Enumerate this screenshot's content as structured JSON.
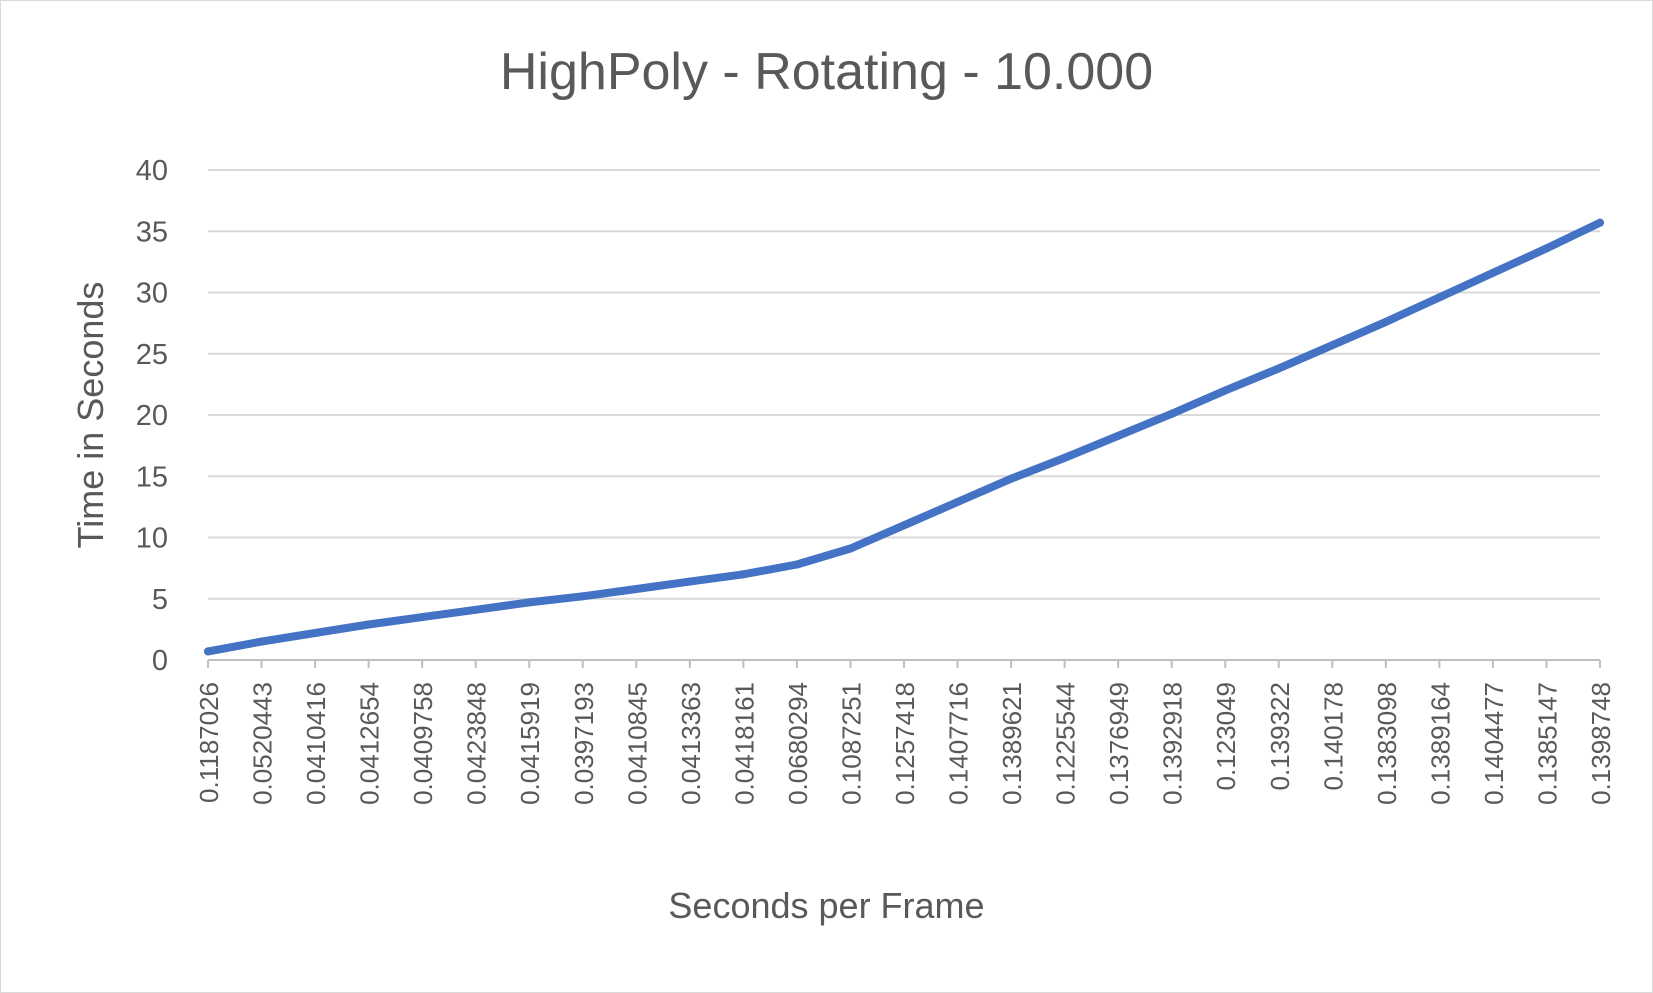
{
  "chart_data": {
    "type": "line",
    "title": "HighPoly - Rotating - 10.000",
    "xlabel": "Seconds per Frame",
    "ylabel": "Time in Seconds",
    "ylim": [
      0,
      40
    ],
    "yticks": [
      0,
      5,
      10,
      15,
      20,
      25,
      30,
      35,
      40
    ],
    "grid": true,
    "legend": "none",
    "colors": {
      "line": "#4472C4",
      "grid": "#d9d9d9",
      "text": "#595959",
      "axis": "#bfbfbf"
    },
    "categories": [
      "0.1187026",
      "0.0520443",
      "0.0410416",
      "0.0412654",
      "0.0409758",
      "0.0423848",
      "0.0415919",
      "0.0397193",
      "0.0410845",
      "0.0413363",
      "0.0418161",
      "0.0680294",
      "0.1087251",
      "0.1257418",
      "0.1407716",
      "0.1389621",
      "0.1225544",
      "0.1376949",
      "0.1392918",
      "0.123049",
      "0.139322",
      "0.140178",
      "0.1383098",
      "0.1389164",
      "0.1404477",
      "0.1385147",
      "0.1398748"
    ],
    "series": [
      {
        "values": [
          0.7,
          1.5,
          2.2,
          2.9,
          3.5,
          4.1,
          4.7,
          5.2,
          5.8,
          6.4,
          7.0,
          7.8,
          9.1,
          11.0,
          12.9,
          14.8,
          16.5,
          18.3,
          20.1,
          22.0,
          23.8,
          25.7,
          27.6,
          29.6,
          31.6,
          33.6,
          35.7
        ]
      }
    ]
  }
}
